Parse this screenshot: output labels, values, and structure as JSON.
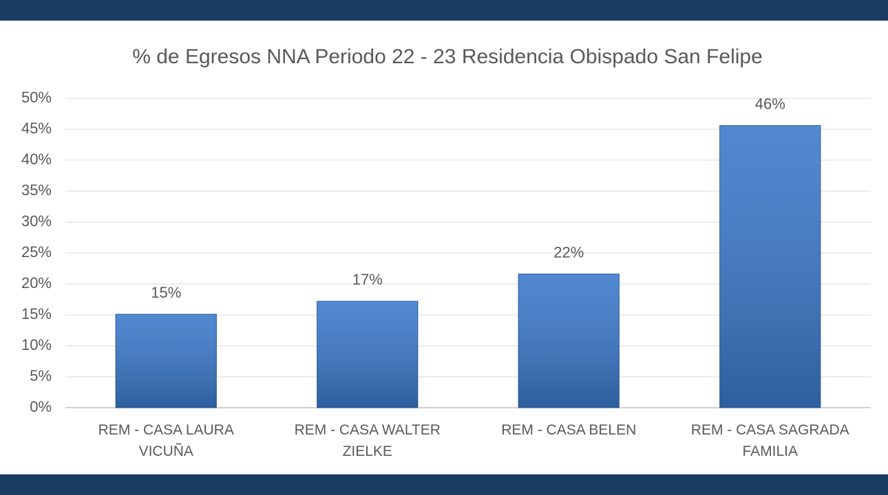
{
  "chart_data": {
    "type": "bar",
    "title": "% de Egresos  NNA Periodo 22 - 23 Residencia Obispado San Felipe",
    "categories": [
      "REM - CASA LAURA VICUÑA",
      "REM - CASA WALTER ZIELKE",
      "REM - CASA BELEN",
      "REM - CASA SAGRADA FAMILIA"
    ],
    "values": [
      15.1,
      17.2,
      21.6,
      45.6
    ],
    "value_labels": [
      "15%",
      "17%",
      "22%",
      "46%"
    ],
    "color": "#3a78c9",
    "ylim": [
      0,
      50
    ],
    "yticks": [
      {
        "value": 0,
        "label": "0%"
      },
      {
        "value": 5,
        "label": "5%"
      },
      {
        "value": 10,
        "label": "10%"
      },
      {
        "value": 15,
        "label": "15%"
      },
      {
        "value": 20,
        "label": "20%"
      },
      {
        "value": 25,
        "label": "25%"
      },
      {
        "value": 30,
        "label": "30%"
      },
      {
        "value": 35,
        "label": "35%"
      },
      {
        "value": 40,
        "label": "40%"
      },
      {
        "value": 45,
        "label": "45%"
      },
      {
        "value": 50,
        "label": "50%"
      }
    ],
    "grid": true
  }
}
